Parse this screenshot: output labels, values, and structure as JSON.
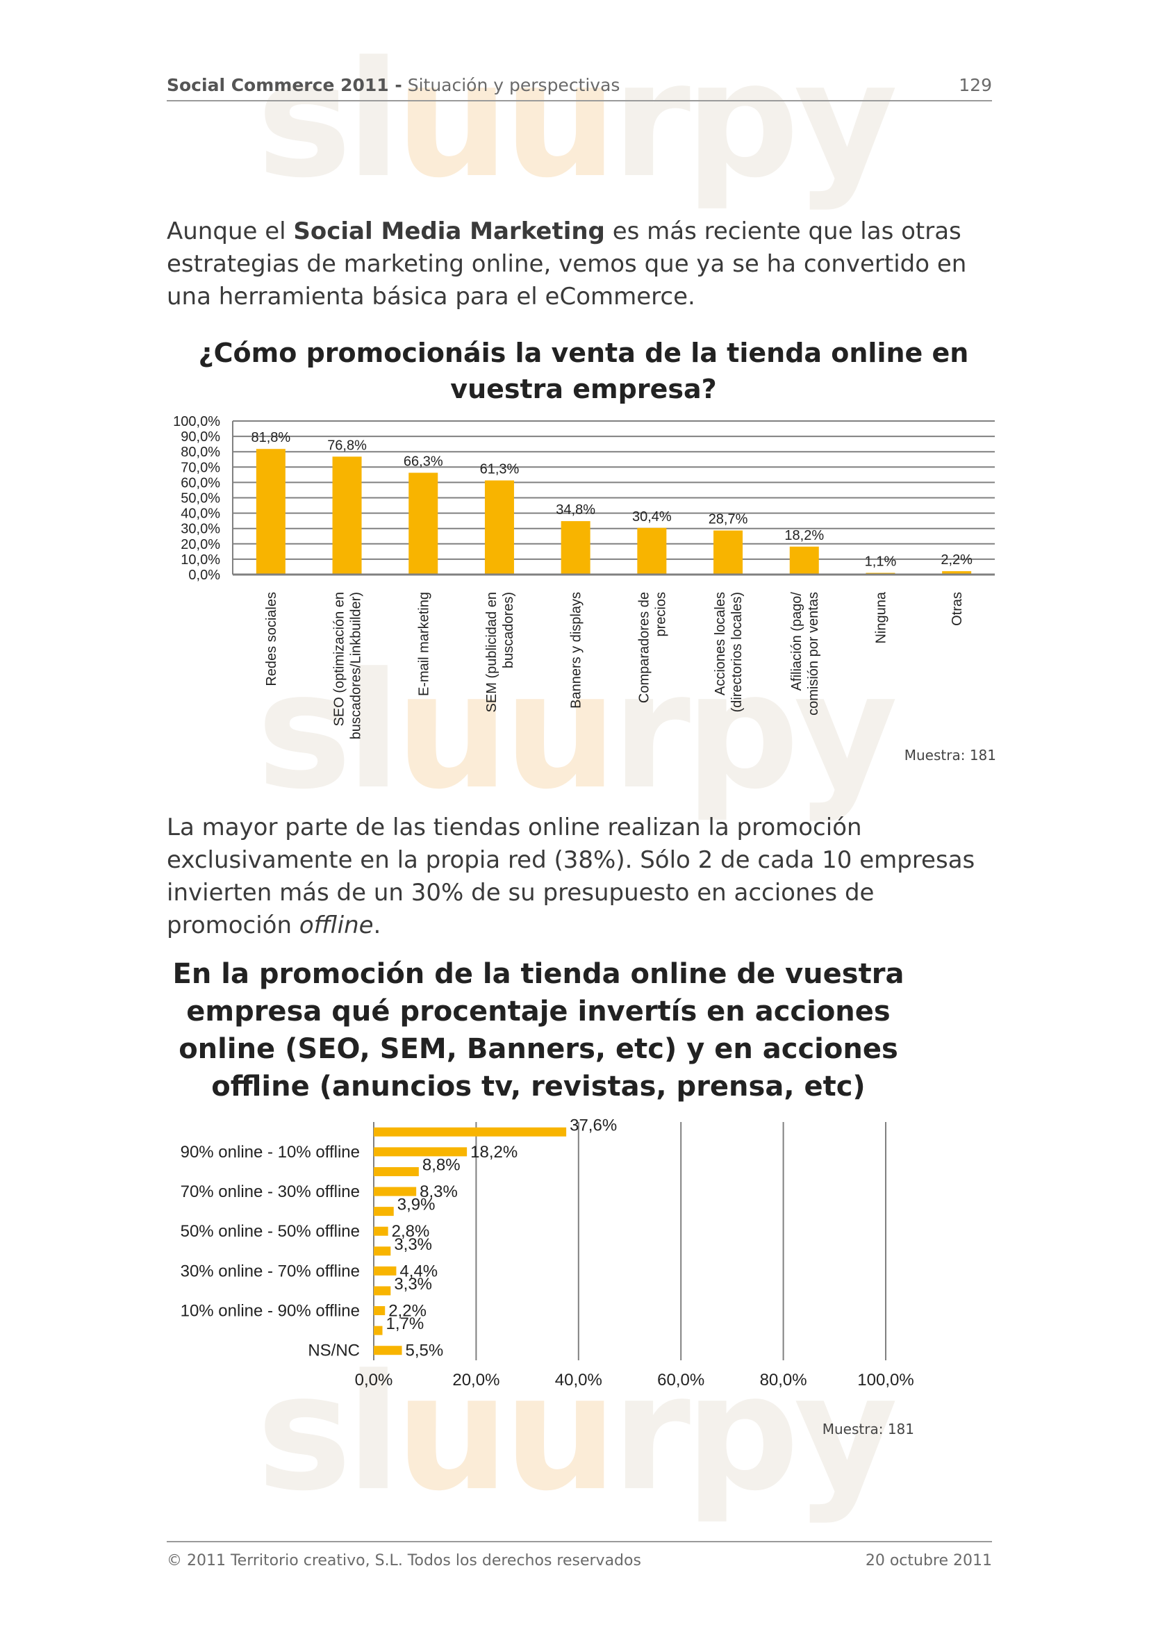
{
  "header": {
    "title_bold": "Social Commerce 2011 -",
    "title_rest": " Situación y perspectivas",
    "page_number": "129"
  },
  "watermark": {
    "text_a": "sl",
    "text_b": "uu",
    "text_c": "rpy"
  },
  "paragraph1": {
    "pre": "Aunque el ",
    "bold": "Social Media Marketing",
    "post": " es más reciente que las otras estrategias de marketing online, vemos que ya se ha convertido en una herramienta básica para el eCommerce."
  },
  "chart1": {
    "title_line1": "¿Cómo promocionáis la venta de la tienda online en",
    "title_line2": "vuestra empresa?",
    "muestra": "Muestra: 181"
  },
  "paragraph2": {
    "pre": "La mayor parte de las tiendas online realizan la promoción exclusivamente en la propia red (38%). Sólo 2 de cada 10 empresas invierten más de un 30% de su presupuesto en acciones de promoción ",
    "italic": "offline",
    "post": "."
  },
  "chart2": {
    "title_line1": "En la promoción de la tienda online de vuestra",
    "title_line2": "empresa qué procentaje invertís en  acciones",
    "title_line3": "online (SEO, SEM, Banners, etc) y  en acciones",
    "title_line4": "offline (anuncios tv, revistas,  prensa, etc)",
    "muestra": "Muestra: 181"
  },
  "footer": {
    "left": "© 2011 Territorio creativo, S.L. Todos los derechos reservados",
    "right": "20 octubre 2011"
  },
  "colors": {
    "bar": "#f8b400",
    "grid": "#808080"
  },
  "chart_data": [
    {
      "type": "bar",
      "title": "¿Cómo promocionáis la venta de la tienda online en vuestra empresa?",
      "categories": [
        [
          "Redes sociales"
        ],
        [
          "SEO (optimización en",
          "buscadores/Linkbuilder)"
        ],
        [
          "E-mail marketing"
        ],
        [
          "SEM (publicidad en",
          "buscadores)"
        ],
        [
          "Banners y displays"
        ],
        [
          "Comparadores de",
          "precios"
        ],
        [
          "Acciones locales",
          "(directorios locales)"
        ],
        [
          "Afiliación (pago/",
          "comisión por ventas"
        ],
        [
          "Ninguna"
        ],
        [
          "Otras"
        ]
      ],
      "values": [
        81.8,
        76.8,
        66.3,
        61.3,
        34.8,
        30.4,
        28.7,
        18.2,
        1.1,
        2.2
      ],
      "value_labels": [
        "81,8%",
        "76,8%",
        "66,3%",
        "61,3%",
        "34,8%",
        "30,4%",
        "28,7%",
        "18,2%",
        "1,1%",
        "2,2%"
      ],
      "yticks": [
        "0,0%",
        "10,0%",
        "20,0%",
        "30,0%",
        "40,0%",
        "50,0%",
        "60,0%",
        "70,0%",
        "80,0%",
        "90,0%",
        "100,0%"
      ],
      "ylim": [
        0,
        100
      ],
      "grid": true
    },
    {
      "type": "bar",
      "orientation": "horizontal",
      "title": "En la promoción de la tienda online de vuestra empresa qué procentaje invertís en acciones online (SEO, SEM, Banners, etc) y en acciones offline (anuncios tv, revistas, prensa, etc)",
      "categories": [
        "",
        "90% online - 10% offline",
        "",
        "70% online - 30% offline",
        "",
        "50% online - 50% offline",
        "",
        "30% online - 70% offline",
        "",
        "10% online - 90% offline",
        "",
        "NS/NC"
      ],
      "values": [
        37.6,
        18.2,
        8.8,
        8.3,
        3.9,
        2.8,
        3.3,
        4.4,
        3.3,
        2.2,
        1.7,
        5.5
      ],
      "value_labels": [
        "37,6%",
        "18,2%",
        "8,8%",
        "8,3%",
        "3,9%",
        "2,8%",
        "3,3%",
        "4,4%",
        "3,3%",
        "2,2%",
        "1,7%",
        "5,5%"
      ],
      "xticks": [
        "0,0%",
        "20,0%",
        "40,0%",
        "60,0%",
        "80,0%",
        "100,0%"
      ],
      "xlim": [
        0,
        100
      ],
      "grid": true
    }
  ]
}
